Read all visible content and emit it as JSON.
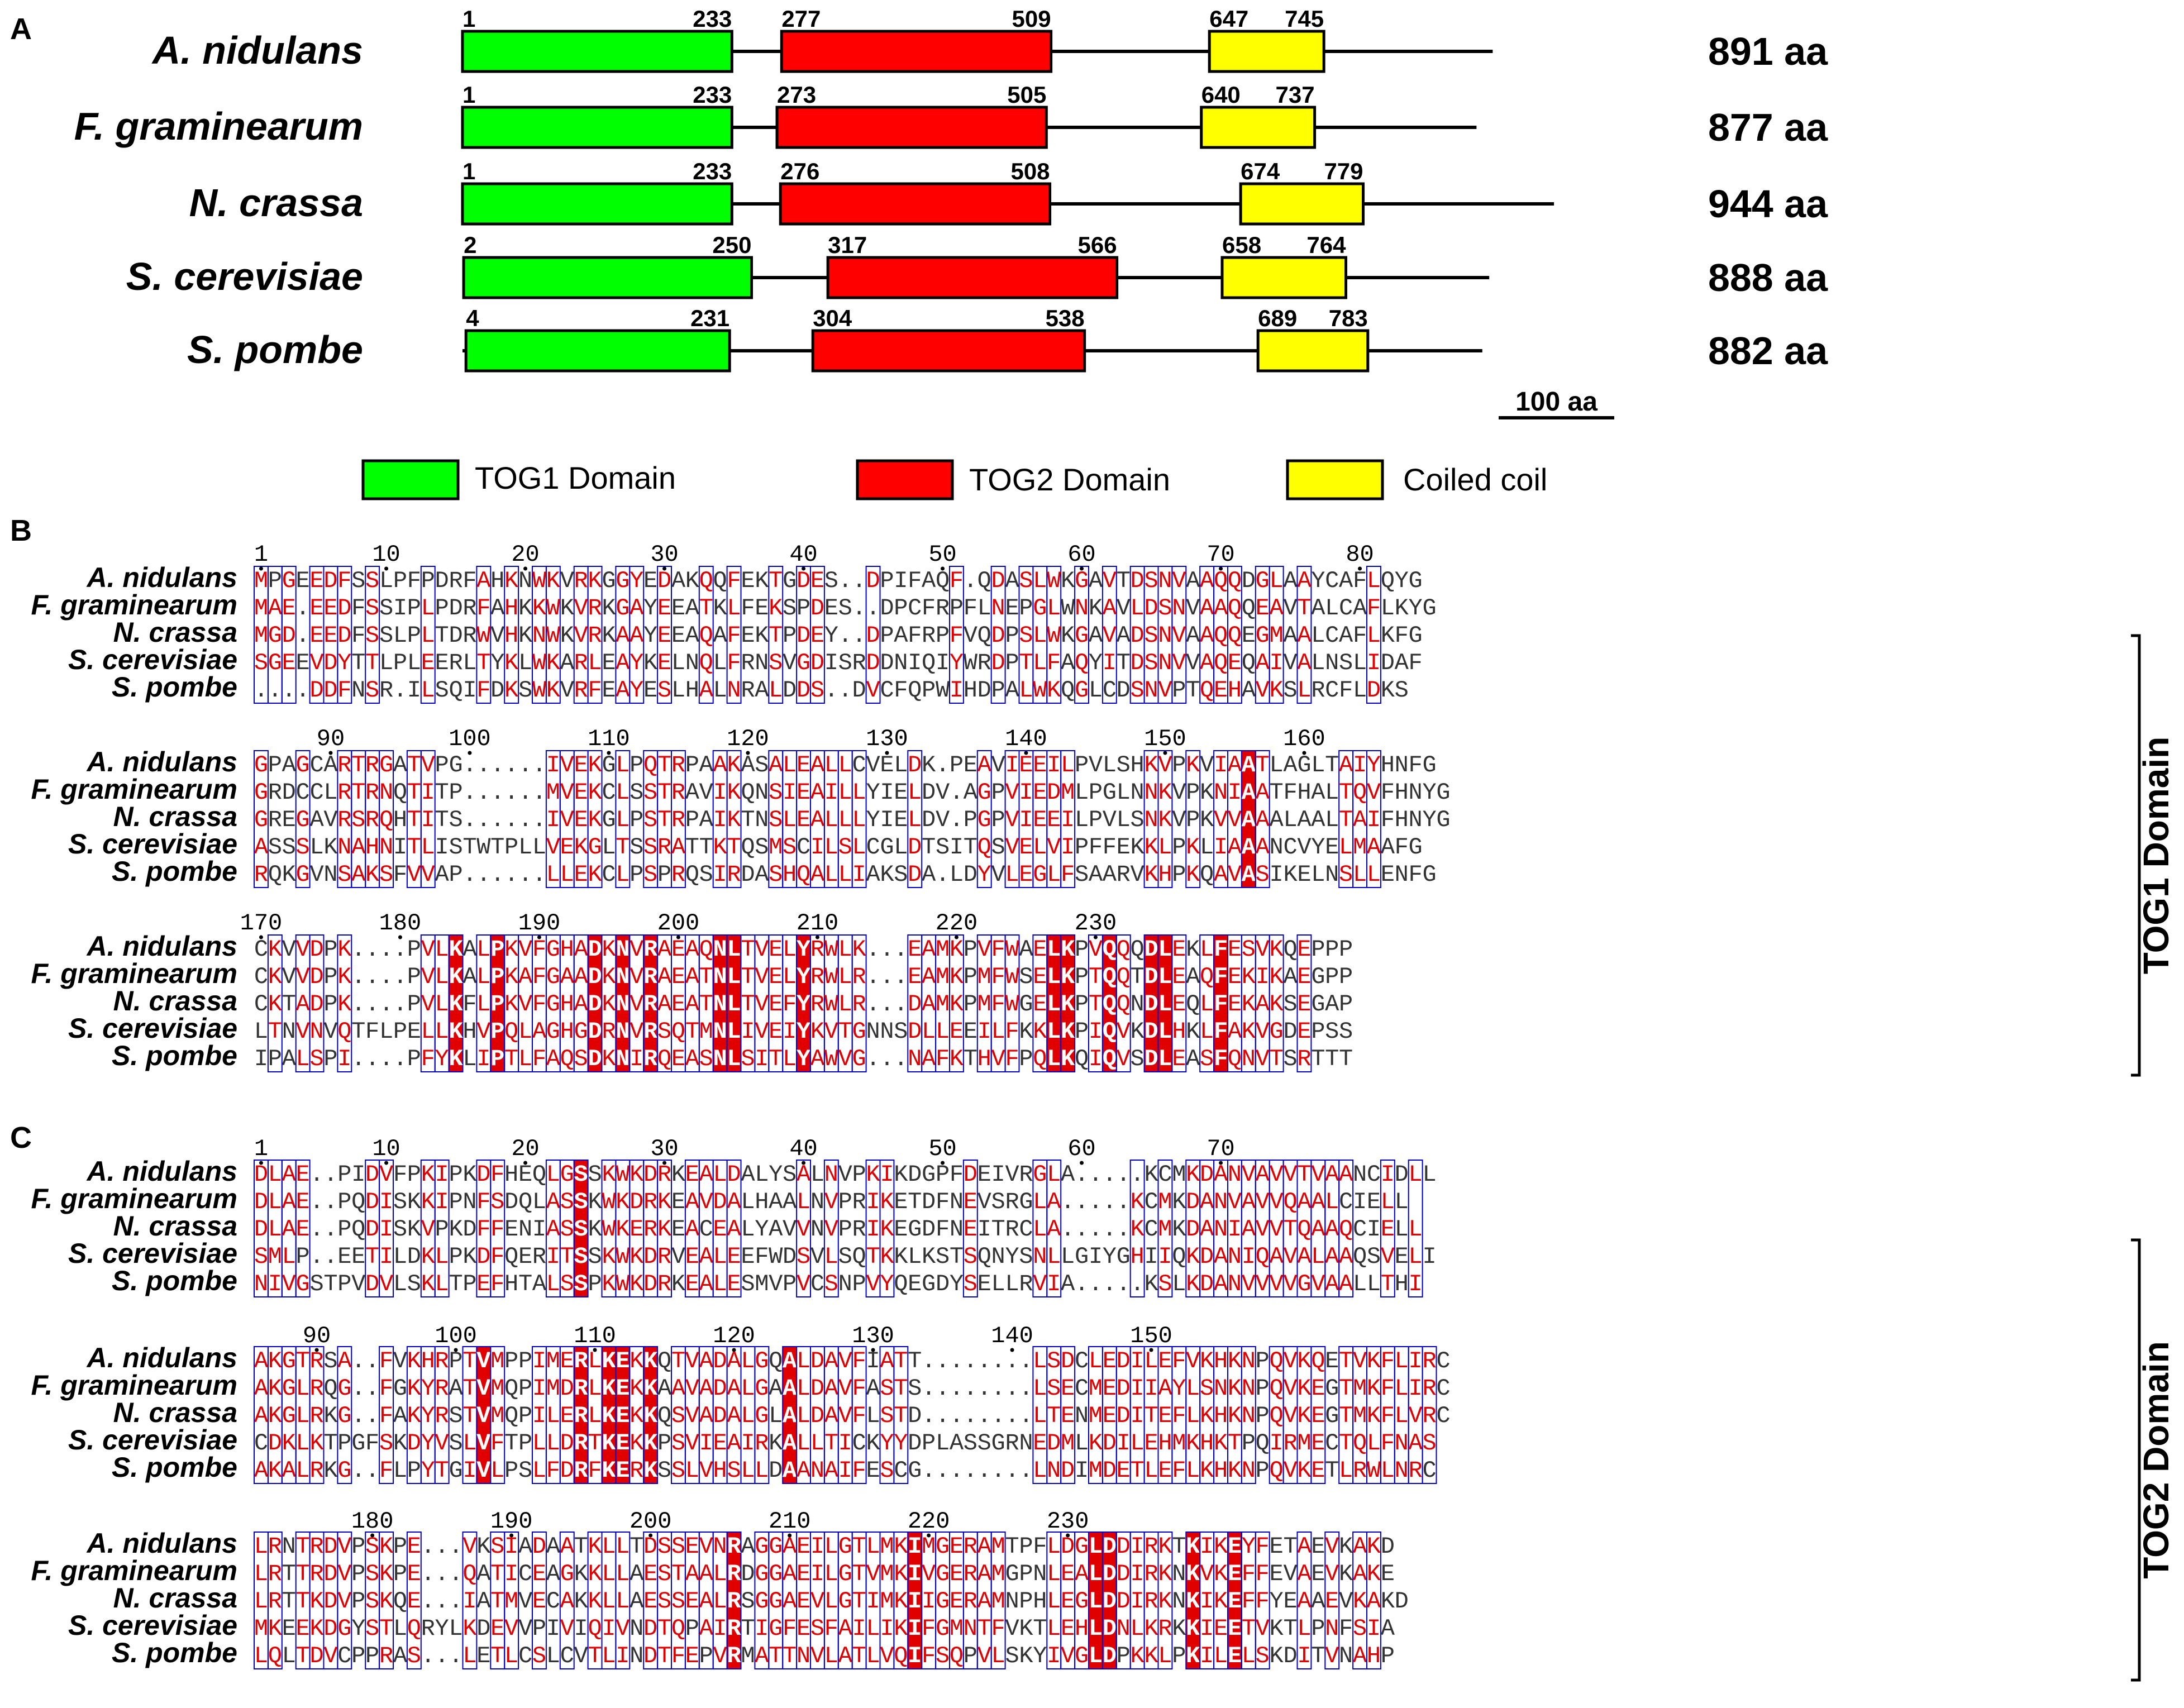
{
  "panels": {
    "a": "A",
    "b": "B",
    "c": "C"
  },
  "domain_map": {
    "species": [
      {
        "name": "A. nidulans",
        "length": "891 aa",
        "length_aa": 891,
        "domains": [
          {
            "type": "tog1",
            "start": 1,
            "end": 233,
            "start_label": "1",
            "end_label": "233"
          },
          {
            "type": "tog2",
            "start": 277,
            "end": 509,
            "start_label": "277",
            "end_label": "509"
          },
          {
            "type": "coil",
            "start": 647,
            "end": 745,
            "start_label": "647",
            "end_label": "745"
          }
        ]
      },
      {
        "name": "F. graminearum",
        "length": "877 aa",
        "length_aa": 877,
        "domains": [
          {
            "type": "tog1",
            "start": 1,
            "end": 233,
            "start_label": "1",
            "end_label": "233"
          },
          {
            "type": "tog2",
            "start": 273,
            "end": 505,
            "start_label": "273",
            "end_label": "505"
          },
          {
            "type": "coil",
            "start": 640,
            "end": 737,
            "start_label": "640",
            "end_label": "737"
          }
        ]
      },
      {
        "name": "N. crassa",
        "length": "944 aa",
        "length_aa": 944,
        "domains": [
          {
            "type": "tog1",
            "start": 1,
            "end": 233,
            "start_label": "1",
            "end_label": "233"
          },
          {
            "type": "tog2",
            "start": 276,
            "end": 508,
            "start_label": "276",
            "end_label": "508"
          },
          {
            "type": "coil",
            "start": 674,
            "end": 779,
            "start_label": "674",
            "end_label": "779"
          }
        ]
      },
      {
        "name": "S. cerevisiae",
        "length": "888 aa",
        "length_aa": 888,
        "domains": [
          {
            "type": "tog1",
            "start": 2,
            "end": 250,
            "start_label": "2",
            "end_label": "250"
          },
          {
            "type": "tog2",
            "start": 317,
            "end": 566,
            "start_label": "317",
            "end_label": "566"
          },
          {
            "type": "coil",
            "start": 658,
            "end": 764,
            "start_label": "658",
            "end_label": "764"
          }
        ]
      },
      {
        "name": "S. pombe",
        "length": "882 aa",
        "length_aa": 882,
        "domains": [
          {
            "type": "tog1",
            "start": 4,
            "end": 231,
            "start_label": "4",
            "end_label": "231"
          },
          {
            "type": "tog2",
            "start": 304,
            "end": 538,
            "start_label": "304",
            "end_label": "538"
          },
          {
            "type": "coil",
            "start": 689,
            "end": 783,
            "start_label": "689",
            "end_label": "783"
          }
        ]
      }
    ],
    "scale_bar": {
      "label": "100 aa",
      "aa": 100
    }
  },
  "legend": [
    {
      "type": "tog1",
      "label": "TOG1 Domain",
      "color": "#00ff00"
    },
    {
      "type": "tog2",
      "label": "TOG2 Domain",
      "color": "#ff0000"
    },
    {
      "type": "coil",
      "label": "Coiled coil",
      "color": "#ffff00"
    }
  ],
  "colors": {
    "tog1": "#00ff00",
    "tog2": "#ff0000",
    "coil": "#ffff00",
    "identical_bg": "#e00000",
    "similar_text": "#e00000",
    "box_border": "#0000cc"
  },
  "alignments": [
    {
      "id": "tog1",
      "bracket_label": "TOG1 Domain",
      "species": [
        "A. nidulans",
        "F. graminearum",
        "N. crassa",
        "S. cerevisiae",
        "S. pombe"
      ],
      "blocks": [
        {
          "ruler": [
            {
              "label": "1",
              "col": 1
            },
            {
              "label": "10",
              "col": 10
            },
            {
              "label": "20",
              "col": 20
            },
            {
              "label": "30",
              "col": 30
            },
            {
              "label": "40",
              "col": 40
            },
            {
              "label": "50",
              "col": 50
            },
            {
              "label": "60",
              "col": 60
            },
            {
              "label": "70",
              "col": 70
            },
            {
              "label": "80",
              "col": 80
            }
          ],
          "seqs": [
            "MPGEEDFSSLPFPDRFAHKNWKVRKGGYEDAKQQFEKTGDES..DPIFAQF.QDASLWKGAVTDSNVAAQQDGLAAYCAFLQYG",
            "MAE.EEDFSSIPLPDRFAHKKWKVRKGAYEEATKLFEKSPDES..DPCFRPFLNEPGLWNKAVLDSNVAAQQEAVTALCAFLKYG",
            "MGD.EEDFSSLPLTDRWVHKNWKVRKAAYEEAQAFEKTPDEY..DPAFRPFVQDPSLWKGAVADSNVAAQQEGMAALCAFLKFG",
            "SGEEVDYTTLPLEERLTYKLWKARLEAYKELNQLFRNSVGDISRDDNIQIYWRDPTLFAQYITDSNVVAQEQAIVALNSLIDAF",
            "....DDFNSR.ILSQIFDKSWKVRFEAYESLHALNRALDDS..DVCFQPWIHDPALWKQGLCDSNVPTQEHAVKSLRCFLDKS"
          ]
        },
        {
          "ruler": [
            {
              "label": "90",
              "col": 90
            },
            {
              "label": "100",
              "col": 100
            },
            {
              "label": "110",
              "col": 110
            },
            {
              "label": "120",
              "col": 120
            },
            {
              "label": "130",
              "col": 130
            },
            {
              "label": "140",
              "col": 140
            },
            {
              "label": "150",
              "col": 150
            },
            {
              "label": "160",
              "col": 160
            }
          ],
          "seqs": [
            "GPAGCARTRGATVPG......IVEKGLPQTRPAAKASALEALLCVELDK.PEAVIEEILPVLSHKVPKVIAATLAGLTAIYHNFG",
            "GRDCCLRTRNQTITP......MVEKCLSSTRAVIKQNSIEAILLYIELDV.AGPVIEDMLPGLNNKVPKNIAATFHALTQVFHNYG",
            "GREGAVRSRQHTITS......IVEKGLPSTRPAIKTNSLEALLLYIELDV.PGPVIEEILPVLSNKVPKVVAAALAALTAIFHNYG",
            "ASSSLKNAHNITLISTWTPLLVEKGLTSSRATTKTQSMSCILSLCGLDTSITQSVELVIPFFEKKLPKLIAAANCVYELMAAFG",
            "RQKGVNSAKSFVVAP......LLEKCLPSPRQSIRDASHQALLIAKSDA.LDYVLEGLFSAARVKHPKQAVASIKELNSLLENFG"
          ]
        },
        {
          "ruler": [
            {
              "label": "170",
              "col": 170
            },
            {
              "label": "180",
              "col": 180
            },
            {
              "label": "190",
              "col": 190
            },
            {
              "label": "200",
              "col": 200
            },
            {
              "label": "210",
              "col": 210
            },
            {
              "label": "220",
              "col": 220
            },
            {
              "label": "230",
              "col": 230
            }
          ],
          "seqs": [
            "CKVVDPK....PVLKALPKVFGHADKNVRAEAQNLTVELYRWLK...EAMKPVFWAELKPVQQQDLEKLFESVKQEPPP",
            "CKVVDPK....PVLKALPKAFGAADKNVRAEATNLTVELYRWLR...EAMKPMFWSELKPTQQTDLEAQFEKIKAEGPP",
            "CKTADPK....PVLKFLPKVFGHADKNVRAEATNLTVEFYRWLR...DAMKPMFWGELKPTQQNDLEQLFEKAKSEGAP",
            "LTNVNVQTFLPELLKHVPQLAGHGDRNVRSQTMNLIVEIYKVTGNNSDLLEEILFKKLKPIQVKDLHKLFAKVGDEPSS",
            "IPALSPI....PFYKLIPTLFAQSDKNIRQEASNLSITLYAWVG...NAFKTHVFPQLKQIQVSDLEASFQNVTSRTTT"
          ]
        }
      ]
    },
    {
      "id": "tog2",
      "bracket_label": "TOG2 Domain",
      "species": [
        "A. nidulans",
        "F. graminearum",
        "N. crassa",
        "S. cerevisiae",
        "S. pombe"
      ],
      "blocks": [
        {
          "ruler": [
            {
              "label": "1",
              "col": 1
            },
            {
              "label": "10",
              "col": 10
            },
            {
              "label": "20",
              "col": 20
            },
            {
              "label": "30",
              "col": 30
            },
            {
              "label": "40",
              "col": 40
            },
            {
              "label": "50",
              "col": 50
            },
            {
              "label": "60",
              "col": 60
            },
            {
              "label": "70",
              "col": 70
            }
          ],
          "seqs": [
            "DLAE..PIDVFPKIPKDFHEQLGSSKWKDRKEALDALYSALNVPKIKDGPFDEIVRGLA.....KCMKDANVAVVTVAANCIDLL",
            "DLAE..PQDISKKIPNFSDQLASSKWKDRKEAVDALHAALNVPRIKETDFNEVSRGLA.....KCMKDANVAVVQAALCIELL",
            "DLAE..PQDISKVPKDFFENIASSKWKERKEACEALYAVVNVPRIKEGDFNEITRCLA.....KCMKDANIAVVTQAAQCIELL",
            "SMLP..EETILDKLPKDFQERITSSKWKDRVEALEEFWDSVLSQTKKLKSTSQNYSNLLGIYGHIIQKDANIQAVALAAQSVELI",
            "NIVGSTPVDVLSKLTPEFHTALSSPKWKDRKEALESMVPVCSNPVYQEGDYSELLRVIA.....KSLKDANVVVVGVAALLTHI"
          ]
        },
        {
          "ruler": [
            {
              "label": "80",
              "col": 80
            },
            {
              "label": "90",
              "col": 90
            },
            {
              "label": "100",
              "col": 100
            },
            {
              "label": "110",
              "col": 110
            },
            {
              "label": "120",
              "col": 120
            },
            {
              "label": "130",
              "col": 130
            },
            {
              "label": "140",
              "col": 140
            },
            {
              "label": "150",
              "col": 150
            }
          ],
          "seqs": [
            "AKGTRSA..FVKHRPTVMPPIMERLKEKKQTVADALGQALDAVFIATT........LSDCLEDILEFVKHKNPQVKQETVKFLIRC",
            "AKGLRQG..FGKYRATVMQPIMDRLKEKKAAVADALGAALDAVFASTS........LSECMEDIIAYLSNKNPQVKEGTMKFLIRC",
            "AKGLRKG..FAKYRSTVMQPILERLKEKKQSVADALGLALDAVFLSTD........LTENMEDITEFLKHKNPQVKEGTMKFLVRC",
            "CDKLKTPGFSKDYVSLVFTPLLDRTKEKKPSVIEAIRKALLTICKYYDPLASSGRNEDMLKDILEHMKHKTPQIRMECTQLFNAS",
            "AKALRKG..FLPYTGIVLPSLFDRFKERKSSLVHSLLDAANAIFESCG........LNDIMDETLEFLKHKNPQVKETLRWLNRC"
          ]
        },
        {
          "ruler": [
            {
              "label": "160",
              "col": 160
            },
            {
              "label": "170",
              "col": 170
            },
            {
              "label": "180",
              "col": 180
            },
            {
              "label": "190",
              "col": 190
            },
            {
              "label": "200",
              "col": 200
            },
            {
              "label": "210",
              "col": 210
            },
            {
              "label": "220",
              "col": 220
            },
            {
              "label": "230",
              "col": 230
            }
          ],
          "seqs": [
            "LRNTRDVPSKPE...VKSIADAATKLLTDSSEVNRAGGAEILGTLMKIMGERAMTPFLDGLDDIRKTKIKEYFETAEVKAKD",
            "LRTTRDVPSKPE...QATICEAGKKLLAESTAALRDGGAEILGTVMKIVGERAMGPNLEALDDIRKNKVKEFFEVAEVKAKE",
            "LRTTKDVPSKQE...IATMVECAKKLLAESSEALRSGGAEVLGTIMKIIGERAMNPHLEGLDDIRKNKIKEFFYEAAEVKAKD",
            "MKEEKDGYSTLQRYLKDEVVPIVIQIVNDTQPAIRTIGFESFAILIKIFGMNTFVKTLEHLDNLKRKKIEETVKTLPNFSIA",
            "LQLTDVCPPRAS...LETLCSLCVTLINDTFEPVRMATTNVLATLVQIFSQPVLSKYIVGLDPKKLPKILELSKDITVNAHP"
          ]
        }
      ]
    }
  ]
}
